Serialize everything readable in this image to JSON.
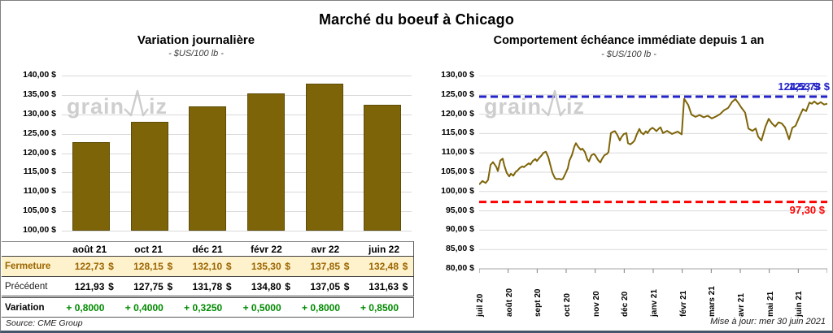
{
  "title": "Marché du boeuf à Chicago",
  "source": "Source: CME Group",
  "updated": "Mise à jour: mer 30 juin 2021",
  "watermark": {
    "name": "grainwiz",
    "pre": "grain",
    "post": "iz"
  },
  "colors": {
    "gold": "#7e6408",
    "gold_text": "#9c6500",
    "close_row_bg": "#fdf2cc",
    "blue": "#2323c8",
    "red": "#ff0000",
    "green": "#008a00",
    "grid": "#d9d9d9",
    "watermark": "#c6c6c6"
  },
  "chart_data": [
    {
      "type": "bar",
      "title": "Variation journalière",
      "subtitle": "- $US/100 lb -",
      "categories": [
        "août 21",
        "oct 21",
        "déc 21",
        "févr 22",
        "avr 22",
        "juin 22"
      ],
      "values": [
        122.73,
        128.15,
        132.1,
        135.3,
        137.85,
        132.48
      ],
      "ylabel": "$US/100 lb",
      "ylim": [
        100,
        140
      ],
      "ytick_step": 5,
      "yticks": [
        "140,00 $",
        "135,00 $",
        "130,00 $",
        "125,00 $",
        "120,00 $",
        "115,00 $",
        "110,00 $",
        "105,00 $",
        "100,00 $"
      ],
      "grid": true,
      "legend": "none"
    },
    {
      "type": "line",
      "title": "Comportement échéance immédiate depuis 1 an",
      "subtitle": "- $US/100 lb -",
      "xticks": [
        "juil 20",
        "août 20",
        "sept 20",
        "oct 20",
        "nov 20",
        "déc 20",
        "janv 21",
        "févr 21",
        "mars 21",
        "avr 21",
        "mai 21",
        "juin 21"
      ],
      "ylim": [
        80,
        130
      ],
      "ytick_step": 5,
      "yticks": [
        "130,00 $",
        "125,00 $",
        "120,00 $",
        "115,00 $",
        "110,00 $",
        "105,00 $",
        "100,00 $",
        "95,00 $",
        "90,00 $",
        "85,00 $",
        "80,00 $"
      ],
      "grid": true,
      "legend": "none",
      "x_max": 428,
      "high_line": {
        "value": 124.53,
        "label": "124,53 $"
      },
      "low_line": {
        "value": 97.3,
        "label": "97,30 $"
      },
      "current_label": {
        "value": 122.73,
        "label": "122,73 $"
      },
      "series": [
        {
          "name": "échéance immédiate",
          "points": [
            [
              0,
              101.8
            ],
            [
              4,
              102.7
            ],
            [
              8,
              102.2
            ],
            [
              11,
              103.0
            ],
            [
              14,
              106.9
            ],
            [
              17,
              107.6
            ],
            [
              21,
              106.4
            ],
            [
              23,
              105.3
            ],
            [
              26,
              108.0
            ],
            [
              29,
              108.5
            ],
            [
              31,
              106.7
            ],
            [
              34,
              104.8
            ],
            [
              37,
              103.9
            ],
            [
              39,
              104.6
            ],
            [
              42,
              104.1
            ],
            [
              45,
              105.1
            ],
            [
              47,
              105.4
            ],
            [
              50,
              106.1
            ],
            [
              53,
              106.5
            ],
            [
              55,
              106.3
            ],
            [
              58,
              106.8
            ],
            [
              61,
              107.3
            ],
            [
              63,
              107.0
            ],
            [
              66,
              107.9
            ],
            [
              69,
              108.4
            ],
            [
              71,
              107.9
            ],
            [
              74,
              108.7
            ],
            [
              77,
              109.4
            ],
            [
              79,
              110.0
            ],
            [
              82,
              110.3
            ],
            [
              85,
              108.9
            ],
            [
              87,
              107.3
            ],
            [
              90,
              104.9
            ],
            [
              93,
              103.5
            ],
            [
              95,
              103.2
            ],
            [
              98,
              103.3
            ],
            [
              101,
              103.1
            ],
            [
              103,
              103.3
            ],
            [
              106,
              104.6
            ],
            [
              109,
              106.0
            ],
            [
              111,
              108.0
            ],
            [
              114,
              109.4
            ],
            [
              117,
              111.6
            ],
            [
              119,
              112.5
            ],
            [
              122,
              111.5
            ],
            [
              125,
              110.8
            ],
            [
              127,
              111.1
            ],
            [
              130,
              110.2
            ],
            [
              133,
              108.3
            ],
            [
              135,
              107.8
            ],
            [
              138,
              109.4
            ],
            [
              141,
              109.7
            ],
            [
              143,
              109.3
            ],
            [
              146,
              108.2
            ],
            [
              149,
              107.5
            ],
            [
              151,
              108.4
            ],
            [
              154,
              109.4
            ],
            [
              157,
              109.7
            ],
            [
              159,
              110.2
            ],
            [
              162,
              115.1
            ],
            [
              165,
              115.5
            ],
            [
              167,
              115.6
            ],
            [
              170,
              114.6
            ],
            [
              173,
              113.2
            ],
            [
              175,
              114.1
            ],
            [
              178,
              114.9
            ],
            [
              181,
              115.1
            ],
            [
              183,
              112.5
            ],
            [
              186,
              112.2
            ],
            [
              189,
              112.7
            ],
            [
              191,
              113.2
            ],
            [
              194,
              114.9
            ],
            [
              197,
              116.2
            ],
            [
              199,
              115.3
            ],
            [
              202,
              114.8
            ],
            [
              205,
              115.6
            ],
            [
              207,
              115.1
            ],
            [
              210,
              116.0
            ],
            [
              213,
              116.5
            ],
            [
              215,
              116.2
            ],
            [
              218,
              115.6
            ],
            [
              221,
              116.3
            ],
            [
              223,
              116.6
            ],
            [
              226,
              115.1
            ],
            [
              231,
              115.7
            ],
            [
              237,
              114.9
            ],
            [
              244,
              115.5
            ],
            [
              249,
              114.8
            ],
            [
              252,
              124.0
            ],
            [
              257,
              122.4
            ],
            [
              261,
              119.9
            ],
            [
              266,
              119.3
            ],
            [
              271,
              119.8
            ],
            [
              276,
              119.2
            ],
            [
              281,
              119.6
            ],
            [
              286,
              118.9
            ],
            [
              291,
              119.4
            ],
            [
              296,
              120.0
            ],
            [
              301,
              121.0
            ],
            [
              306,
              121.6
            ],
            [
              311,
              123.2
            ],
            [
              315,
              123.9
            ],
            [
              319,
              122.8
            ],
            [
              322,
              121.8
            ],
            [
              327,
              120.4
            ],
            [
              331,
              116.3
            ],
            [
              336,
              115.7
            ],
            [
              340,
              116.3
            ],
            [
              343,
              114.2
            ],
            [
              347,
              113.2
            ],
            [
              352,
              116.8
            ],
            [
              356,
              118.8
            ],
            [
              360,
              117.6
            ],
            [
              364,
              116.8
            ],
            [
              368,
              117.9
            ],
            [
              372,
              117.6
            ],
            [
              376,
              116.6
            ],
            [
              381,
              113.5
            ],
            [
              385,
              116.5
            ],
            [
              389,
              117.0
            ],
            [
              394,
              119.5
            ],
            [
              398,
              121.3
            ],
            [
              402,
              120.8
            ],
            [
              406,
              123.0
            ],
            [
              409,
              122.7
            ],
            [
              412,
              123.3
            ],
            [
              416,
              122.6
            ],
            [
              420,
              123.1
            ],
            [
              424,
              122.5
            ],
            [
              428,
              122.7
            ]
          ]
        }
      ]
    }
  ],
  "table": {
    "columns": [
      "août 21",
      "oct 21",
      "déc 21",
      "févr 22",
      "avr 22",
      "juin 22"
    ],
    "rows": [
      {
        "label": "Fermeture",
        "style": "close",
        "suffix": "$",
        "values": [
          "122,73",
          "128,15",
          "132,10",
          "135,30",
          "137,85",
          "132,48"
        ]
      },
      {
        "label": "Précédent",
        "style": "previous",
        "suffix": "$",
        "values": [
          "121,93",
          "127,75",
          "131,78",
          "134,80",
          "137,05",
          "131,63"
        ]
      },
      {
        "label": "Variation",
        "style": "variation",
        "suffix": "",
        "values": [
          "+ 0,8000",
          "+ 0,4000",
          "+ 0,3250",
          "+ 0,5000",
          "+ 0,8000",
          "+ 0,8500"
        ]
      }
    ]
  }
}
